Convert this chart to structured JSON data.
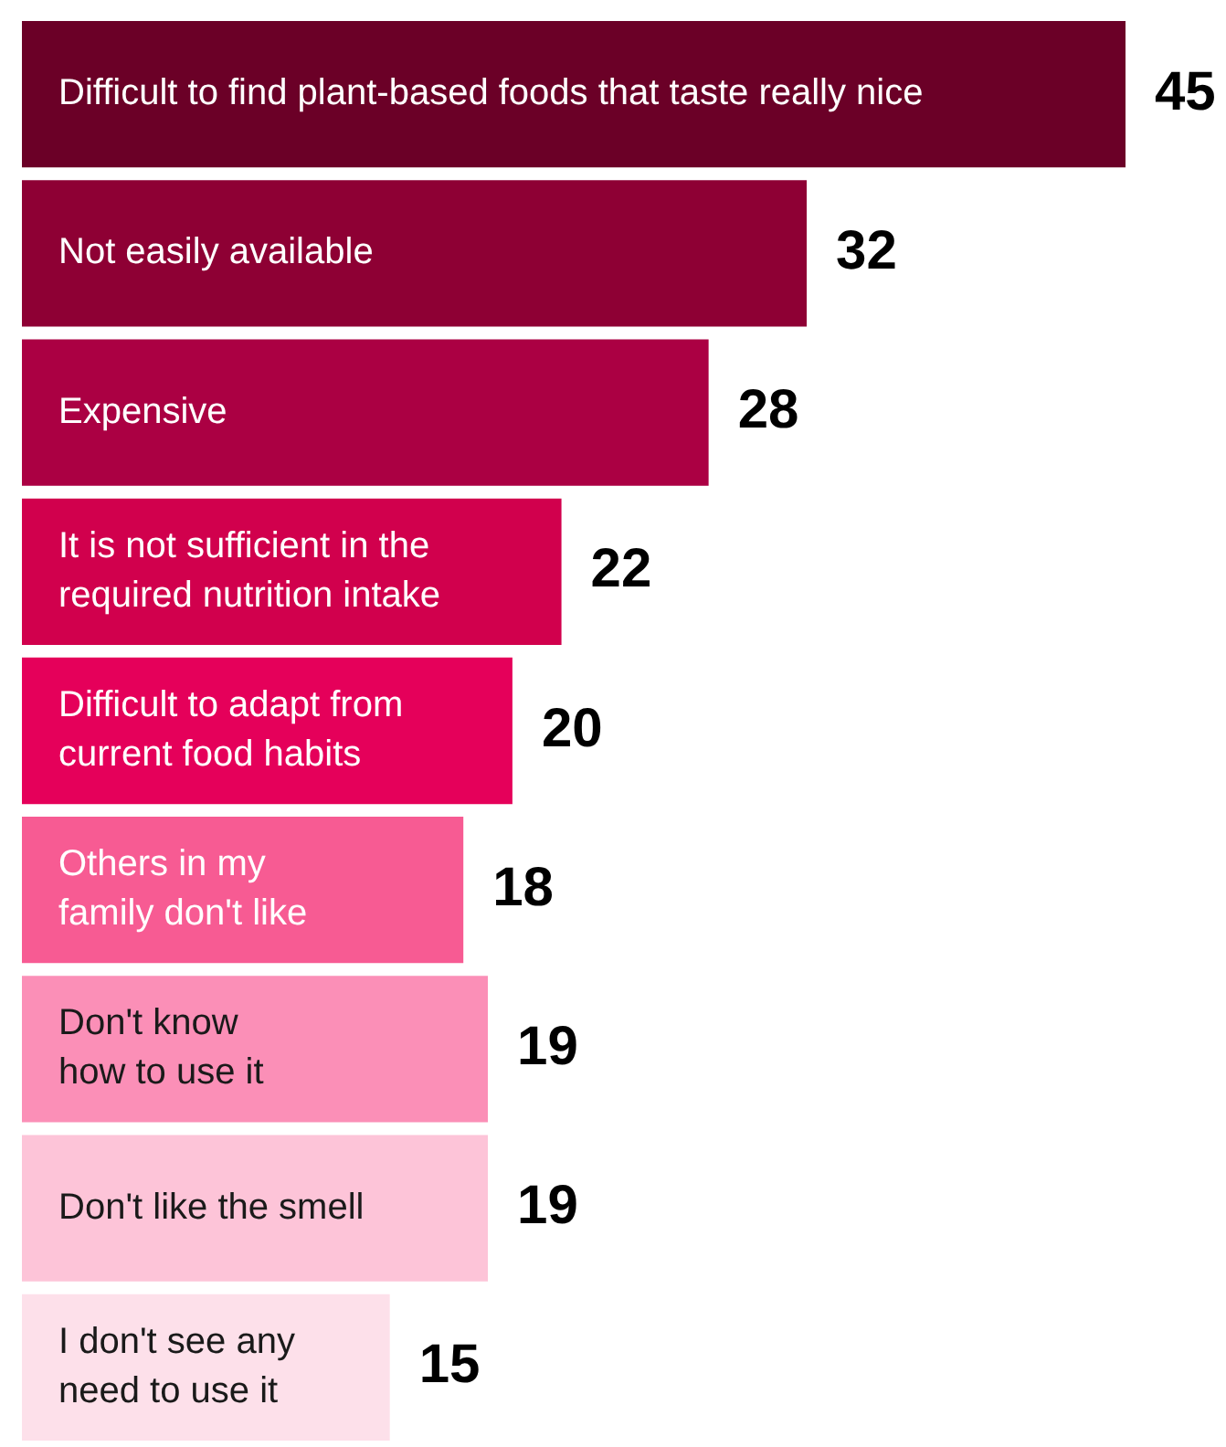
{
  "chart_data": {
    "type": "bar",
    "orientation": "horizontal",
    "categories": [
      "Difficult to find plant-based foods that taste really nice",
      "Not easily available",
      "Expensive",
      "It is not sufficient in the required nutrition intake",
      "Difficult to adapt from current food habits",
      "Others in my family don't like",
      "Don't know how to use it",
      "Don't like the smell",
      "I don't see any need to use it"
    ],
    "values": [
      45,
      32,
      28,
      22,
      20,
      18,
      19,
      19,
      15
    ],
    "colors": [
      "#6b0027",
      "#8e0034",
      "#ab0043",
      "#d1004d",
      "#e5005a",
      "#f75b93",
      "#fb8fb7",
      "#fdc4d8",
      "#fde0ea"
    ],
    "data_labels": true,
    "legend": false,
    "tick_labels": false
  }
}
